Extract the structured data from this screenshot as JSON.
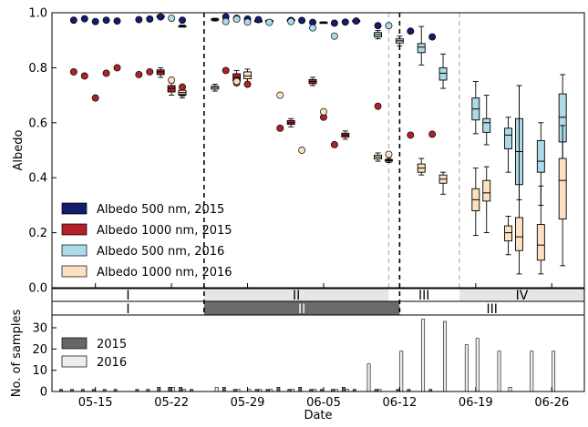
{
  "chart_data": {
    "type": "box",
    "y_axis": {
      "label": "Albedo",
      "range": [
        0,
        1
      ],
      "ticks": [
        "0.0",
        "0.2",
        "0.4",
        "0.6",
        "0.8",
        "1.0"
      ]
    },
    "series": [
      {
        "name": "Albedo 500 nm, 2015",
        "color": "#141c6b",
        "points": [
          [
            "05-13",
            0.973
          ],
          [
            "05-14",
            0.978
          ],
          [
            "05-15",
            0.968
          ],
          [
            "05-16",
            0.973
          ],
          [
            "05-17",
            0.97
          ],
          [
            "05-19",
            0.975
          ],
          [
            "05-20",
            0.977
          ],
          [
            "05-21",
            0.985
          ],
          [
            "05-23",
            0.973
          ],
          [
            "05-27",
            0.985
          ],
          [
            "05-28",
            0.98
          ],
          [
            "05-29",
            0.977
          ],
          [
            "05-30",
            0.975
          ],
          [
            "06-02",
            0.972
          ],
          [
            "06-03",
            0.972
          ],
          [
            "06-04",
            0.965
          ],
          [
            "06-06",
            0.962
          ],
          [
            "06-07",
            0.966
          ],
          [
            "06-08",
            0.97
          ],
          [
            "06-10",
            0.953
          ],
          [
            "06-13",
            0.933
          ],
          [
            "06-15",
            0.912
          ]
        ],
        "boxes": [
          [
            "05-21",
            0.978,
            0.983,
            0.988,
            0.99,
            0.993
          ],
          [
            "05-23",
            0.948,
            0.95,
            0.952,
            0.953,
            0.955
          ],
          [
            "05-31",
            0.965,
            0.968,
            0.97,
            0.972,
            0.974
          ],
          [
            "06-02",
            0.969,
            0.972,
            0.973,
            0.975,
            0.977
          ],
          [
            "06-05",
            0.962,
            0.964,
            0.965,
            0.966,
            0.967
          ],
          [
            "06-08",
            0.966,
            0.969,
            0.97,
            0.972,
            0.974
          ]
        ]
      },
      {
        "name": "Albedo 1000 nm, 2015",
        "color": "#b2202a",
        "points": [
          [
            "05-13",
            0.785
          ],
          [
            "05-14",
            0.77
          ],
          [
            "05-15",
            0.69
          ],
          [
            "05-16",
            0.78
          ],
          [
            "05-17",
            0.8
          ],
          [
            "05-19",
            0.775
          ],
          [
            "05-20",
            0.785
          ],
          [
            "05-23",
            0.73
          ],
          [
            "05-27",
            0.79
          ],
          [
            "05-28",
            0.745
          ],
          [
            "05-29",
            0.74
          ],
          [
            "06-01",
            0.58
          ],
          [
            "06-05",
            0.62
          ],
          [
            "06-06",
            0.52
          ],
          [
            "06-10",
            0.66
          ],
          [
            "06-13",
            0.555
          ],
          [
            "06-15",
            0.558
          ]
        ],
        "boxes": [
          [
            "05-21",
            0.765,
            0.775,
            0.785,
            0.792,
            0.8
          ],
          [
            "05-22",
            0.7,
            0.712,
            0.725,
            0.735,
            0.745
          ],
          [
            "05-23",
            0.69,
            0.7,
            0.708,
            0.715,
            0.725
          ],
          [
            "05-28",
            0.74,
            0.752,
            0.765,
            0.778,
            0.79
          ],
          [
            "06-02",
            0.585,
            0.594,
            0.6,
            0.608,
            0.615
          ],
          [
            "06-04",
            0.735,
            0.742,
            0.75,
            0.757,
            0.765
          ],
          [
            "06-07",
            0.54,
            0.548,
            0.555,
            0.562,
            0.57
          ],
          [
            "06-11",
            0.455,
            0.46,
            0.463,
            0.466,
            0.47
          ]
        ]
      },
      {
        "name": "Albedo 500 nm, 2016",
        "color": "#aed9e6",
        "points": [
          [
            "05-22",
            0.98
          ],
          [
            "05-27",
            0.968
          ],
          [
            "05-28",
            0.977
          ],
          [
            "05-29",
            0.966
          ],
          [
            "05-31",
            0.965
          ],
          [
            "06-02",
            0.968
          ],
          [
            "06-04",
            0.945
          ],
          [
            "06-06",
            0.915
          ],
          [
            "06-11",
            0.953
          ]
        ],
        "boxes": [
          [
            "05-26",
            0.97,
            0.973,
            0.975,
            0.978,
            0.98
          ],
          [
            "05-30",
            0.965,
            0.968,
            0.97,
            0.972,
            0.974
          ],
          [
            "06-10",
            0.905,
            0.912,
            0.92,
            0.928,
            0.935
          ],
          [
            "06-12",
            0.88,
            0.89,
            0.898,
            0.905,
            0.915
          ],
          [
            "06-14",
            0.81,
            0.855,
            0.875,
            0.888,
            0.95
          ],
          [
            "06-16",
            0.725,
            0.755,
            0.78,
            0.8,
            0.85
          ],
          [
            "06-19",
            0.56,
            0.61,
            0.65,
            0.69,
            0.75
          ],
          [
            "06-20",
            0.52,
            0.565,
            0.6,
            0.615,
            0.7
          ],
          [
            "06-22",
            0.42,
            0.505,
            0.555,
            0.58,
            0.62
          ],
          [
            "06-23",
            0.32,
            0.375,
            0.495,
            0.615,
            0.735
          ],
          [
            "06-25",
            0.3,
            0.42,
            0.46,
            0.535,
            0.6
          ],
          [
            "06-27",
            0.4,
            0.53,
            0.62,
            0.705,
            0.775
          ]
        ]
      },
      {
        "name": "Albedo 1000 nm, 2016",
        "color": "#fde0c0",
        "points": [
          [
            "05-22",
            0.755
          ],
          [
            "05-28",
            0.75
          ],
          [
            "06-01",
            0.7
          ],
          [
            "06-03",
            0.5
          ],
          [
            "06-05",
            0.64
          ],
          [
            "06-11",
            0.485
          ]
        ],
        "boxes": [
          [
            "05-23",
            0.698,
            0.703,
            0.71,
            0.718,
            0.725
          ],
          [
            "05-26",
            0.715,
            0.722,
            0.728,
            0.733,
            0.74
          ],
          [
            "05-29",
            0.745,
            0.76,
            0.77,
            0.785,
            0.795
          ],
          [
            "06-10",
            0.46,
            0.468,
            0.475,
            0.482,
            0.49
          ],
          [
            "06-14",
            0.41,
            0.42,
            0.435,
            0.45,
            0.47
          ],
          [
            "06-16",
            0.34,
            0.38,
            0.395,
            0.41,
            0.42
          ],
          [
            "06-19",
            0.19,
            0.28,
            0.32,
            0.36,
            0.435
          ],
          [
            "06-20",
            0.2,
            0.315,
            0.345,
            0.39,
            0.44
          ],
          [
            "06-22",
            0.12,
            0.17,
            0.2,
            0.225,
            0.26
          ],
          [
            "06-23",
            0.05,
            0.135,
            0.185,
            0.255,
            0.735
          ],
          [
            "06-25",
            0.05,
            0.1,
            0.155,
            0.23,
            0.37
          ],
          [
            "06-27",
            0.08,
            0.25,
            0.39,
            0.47,
            0.59
          ]
        ]
      }
    ],
    "period_lines": [
      {
        "date": "05-25",
        "style": "black-dashed"
      },
      {
        "date": "06-12",
        "style": "black-dashed"
      },
      {
        "date": "06-11",
        "style": "gray-dashed"
      },
      {
        "date": "06-17.5",
        "style": "gray-dashed"
      }
    ],
    "periods_2016": [
      {
        "label": "I",
        "start": "05-11",
        "end": "05-25",
        "color": "#ffffff"
      },
      {
        "label": "II",
        "start": "05-25",
        "end": "06-11",
        "color": "#e6e6e6"
      },
      {
        "label": "III",
        "start": "06-11",
        "end": "06-17.5",
        "color": "#ffffff"
      },
      {
        "label": "IV",
        "start": "06-17.5",
        "end": "06-29",
        "color": "#e6e6e6"
      }
    ],
    "periods_2015": [
      {
        "label": "I",
        "start": "05-11",
        "end": "05-25",
        "color": "#ffffff"
      },
      {
        "label": "II",
        "start": "05-25",
        "end": "06-12",
        "color": "#6b6b6b"
      },
      {
        "label": "III",
        "start": "06-12",
        "end": "06-29",
        "color": "#ffffff"
      }
    ],
    "samples": {
      "y_axis": {
        "label": "No. of samples",
        "range": [
          0,
          36
        ],
        "ticks": [
          "0",
          "10",
          "20",
          "30"
        ]
      },
      "x_axis": {
        "label": "Date",
        "range": [
          "05-11",
          "06-29"
        ],
        "ticks": [
          "05-15",
          "05-22",
          "05-29",
          "06-05",
          "06-12",
          "06-19",
          "06-26"
        ]
      },
      "series": [
        {
          "name": "2015",
          "color": "#666666",
          "bars": [
            [
              "05-12",
              1
            ],
            [
              "05-13",
              1
            ],
            [
              "05-14",
              1
            ],
            [
              "05-15",
              1
            ],
            [
              "05-16",
              1
            ],
            [
              "05-17",
              1
            ],
            [
              "05-19",
              1
            ],
            [
              "05-20",
              1
            ],
            [
              "05-21",
              2
            ],
            [
              "05-22",
              2
            ],
            [
              "05-23",
              2
            ],
            [
              "05-24",
              1
            ],
            [
              "05-27",
              2
            ],
            [
              "05-28",
              1
            ],
            [
              "05-30",
              1
            ],
            [
              "05-31",
              1
            ],
            [
              "06-01",
              2
            ],
            [
              "06-02",
              1
            ],
            [
              "06-03",
              2
            ],
            [
              "06-04",
              1
            ],
            [
              "06-05",
              1
            ],
            [
              "06-06",
              1
            ],
            [
              "06-07",
              2
            ],
            [
              "06-08",
              1
            ],
            [
              "06-10",
              1
            ],
            [
              "06-12",
              1
            ],
            [
              "06-13",
              1
            ],
            [
              "06-15",
              1
            ]
          ]
        },
        {
          "name": "2016",
          "color": "#eeeeee",
          "bars": [
            [
              "05-22",
              2
            ],
            [
              "05-23",
              1
            ],
            [
              "05-26",
              2
            ],
            [
              "05-28",
              1
            ],
            [
              "05-29",
              1
            ],
            [
              "05-30",
              1
            ],
            [
              "05-31",
              1
            ],
            [
              "06-02",
              1
            ],
            [
              "06-04",
              1
            ],
            [
              "06-06",
              1
            ],
            [
              "06-07",
              1
            ],
            [
              "06-09",
              13
            ],
            [
              "06-10",
              1
            ],
            [
              "06-12",
              19
            ],
            [
              "06-14",
              34
            ],
            [
              "06-16",
              33
            ],
            [
              "06-18",
              22
            ],
            [
              "06-19",
              25
            ],
            [
              "06-21",
              19
            ],
            [
              "06-22",
              2
            ],
            [
              "06-24",
              19
            ],
            [
              "06-26",
              19
            ]
          ]
        }
      ]
    }
  }
}
